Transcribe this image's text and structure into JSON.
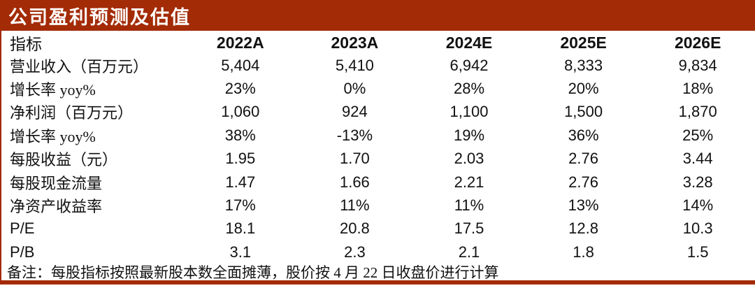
{
  "title": "公司盈利预测及估值",
  "colors": {
    "accent_red": "#A32B05",
    "title_text": "#FFFFFF",
    "body_text": "#111111"
  },
  "table": {
    "header": [
      "指标",
      "2022A",
      "2023A",
      "2024E",
      "2025E",
      "2026E"
    ],
    "rows": [
      {
        "label": "营业收入（百万元）",
        "values": [
          "5,404",
          "5,410",
          "6,942",
          "8,333",
          "9,834"
        ]
      },
      {
        "label": "增长率 yoy%",
        "values": [
          "23%",
          "0%",
          "28%",
          "20%",
          "18%"
        ]
      },
      {
        "label": "净利润（百万元）",
        "values": [
          "1,060",
          "924",
          "1,100",
          "1,500",
          "1,870"
        ]
      },
      {
        "label": "增长率 yoy%",
        "values": [
          "38%",
          "-13%",
          "19%",
          "36%",
          "25%"
        ]
      },
      {
        "label": "每股收益（元）",
        "values": [
          "1.95",
          "1.70",
          "2.03",
          "2.76",
          "3.44"
        ]
      },
      {
        "label": "每股现金流量",
        "values": [
          "1.47",
          "1.66",
          "2.21",
          "2.76",
          "3.28"
        ]
      },
      {
        "label": "净资产收益率",
        "values": [
          "17%",
          "11%",
          "11%",
          "13%",
          "14%"
        ]
      },
      {
        "label": "P/E",
        "values": [
          "18.1",
          "20.8",
          "17.5",
          "12.8",
          "10.3"
        ]
      },
      {
        "label": "P/B",
        "values": [
          "3.1",
          "2.3",
          "2.1",
          "1.8",
          "1.5"
        ]
      }
    ]
  },
  "note": "备注：每股指标按照最新股本数全面摊薄，股价按 4 月 22 日收盘价进行计算"
}
